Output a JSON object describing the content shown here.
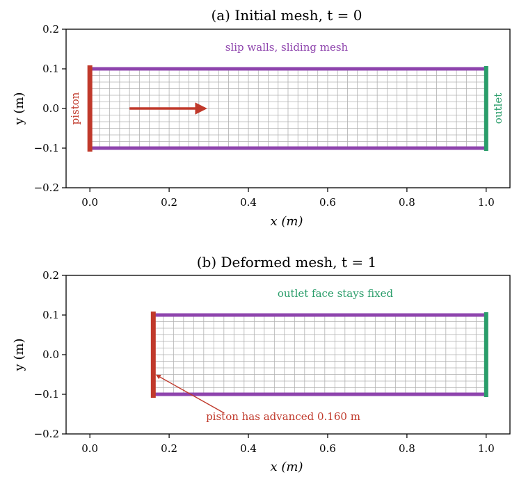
{
  "colors": {
    "piston": "#c0392b",
    "wall": "#8e44ad",
    "outlet": "#2a9d6a",
    "grid": "#b0b0b0"
  },
  "chart_data": [
    {
      "type": "mesh-diagram",
      "title": "(a) Initial mesh, t = 0",
      "xlabel": "x (m)",
      "ylabel": "y (m)",
      "xlim": [
        -0.06,
        1.06
      ],
      "ylim": [
        -0.2,
        0.2
      ],
      "xticks": [
        "0.0",
        "0.2",
        "0.4",
        "0.6",
        "0.8",
        "1.0"
      ],
      "yticks": [
        "−0.2",
        "−0.1",
        "0.0",
        "0.1",
        "0.2"
      ],
      "piston_x": 0.0,
      "outlet_x": 1.0,
      "wall_y": [
        -0.1,
        0.1
      ],
      "mesh_columns": 40,
      "mesh_rows": 12,
      "arrow": {
        "x0": 0.1,
        "x1": 0.29,
        "y": 0.0
      },
      "labels": {
        "top": "slip walls, sliding mesh",
        "piston": "piston",
        "outlet": "outlet"
      }
    },
    {
      "type": "mesh-diagram",
      "title": "(b) Deformed mesh, t = 1",
      "xlabel": "x (m)",
      "ylabel": "y (m)",
      "xlim": [
        -0.06,
        1.06
      ],
      "ylim": [
        -0.2,
        0.2
      ],
      "xticks": [
        "0.0",
        "0.2",
        "0.4",
        "0.6",
        "0.8",
        "1.0"
      ],
      "yticks": [
        "−0.2",
        "−0.1",
        "0.0",
        "0.1",
        "0.2"
      ],
      "piston_x": 0.16,
      "outlet_x": 1.0,
      "wall_y": [
        -0.1,
        0.1
      ],
      "mesh_columns": 33,
      "mesh_rows": 12,
      "labels": {
        "top": "outlet face stays fixed",
        "annotation": "piston has advanced 0.160 m"
      },
      "annotation_arrow": {
        "text_x": 0.42,
        "text_y": -0.13,
        "tip_x": 0.165,
        "tip_y": -0.05
      }
    }
  ]
}
